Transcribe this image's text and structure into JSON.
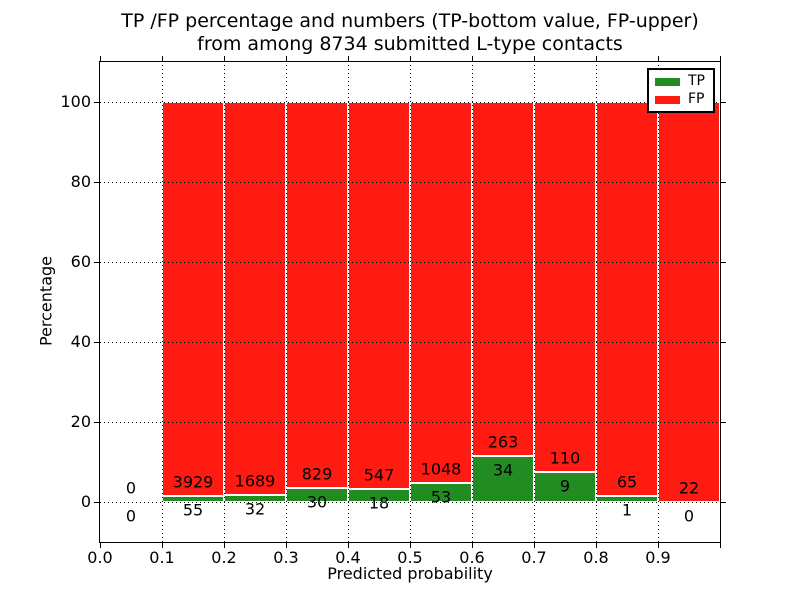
{
  "figure": {
    "title_line1": "TP /FP percentage and numbers (TP-bottom value, FP-upper)",
    "title_line2": "from among 8734 submitted L-type contacts",
    "xlabel": "Predicted probability",
    "ylabel": "Percentage"
  },
  "chart_data": {
    "type": "bar",
    "stacked": true,
    "normalized": "each bin stacked to 100 percent; green TP segment bottom, red FP segment top",
    "title": "TP /FP percentage and numbers (TP-bottom value, FP-upper) from among 8734 submitted L-type contacts",
    "xlabel": "Predicted probability",
    "ylabel": "Percentage",
    "total_submitted_contacts": 8734,
    "xlim": [
      0.0,
      1.0
    ],
    "ylim": [
      -10,
      110
    ],
    "grid": "dotted, drawn above bars",
    "legend_position": "upper right",
    "x_tick_marks": [
      0.0,
      0.1,
      0.2,
      0.3,
      0.4,
      0.5,
      0.6,
      0.7,
      0.8,
      0.9,
      1.0
    ],
    "x_tick_labels": [
      "0.0",
      "0.1",
      "0.2",
      "0.3",
      "0.4",
      "0.5",
      "0.6",
      "0.7",
      "0.8",
      "0.9"
    ],
    "y_ticks": [
      0,
      20,
      40,
      60,
      80,
      100
    ],
    "colors": {
      "tp": "#228b22",
      "fp": "#ff1b12"
    },
    "legend": [
      {
        "key": "tp",
        "label": "TP"
      },
      {
        "key": "fp",
        "label": "FP"
      }
    ],
    "annotation_offset_units": 3.5,
    "bins": [
      {
        "x0": 0.0,
        "x1": 0.1,
        "tp": 0,
        "fp": 0
      },
      {
        "x0": 0.1,
        "x1": 0.2,
        "tp": 55,
        "fp": 3929
      },
      {
        "x0": 0.2,
        "x1": 0.3,
        "tp": 32,
        "fp": 1689
      },
      {
        "x0": 0.3,
        "x1": 0.4,
        "tp": 30,
        "fp": 829
      },
      {
        "x0": 0.4,
        "x1": 0.5,
        "tp": 18,
        "fp": 547
      },
      {
        "x0": 0.5,
        "x1": 0.6,
        "tp": 53,
        "fp": 1048
      },
      {
        "x0": 0.6,
        "x1": 0.7,
        "tp": 34,
        "fp": 263
      },
      {
        "x0": 0.7,
        "x1": 0.8,
        "tp": 9,
        "fp": 110
      },
      {
        "x0": 0.8,
        "x1": 0.9,
        "tp": 1,
        "fp": 65
      },
      {
        "x0": 0.9,
        "x1": 1.0,
        "tp": 0,
        "fp": 22
      }
    ]
  }
}
